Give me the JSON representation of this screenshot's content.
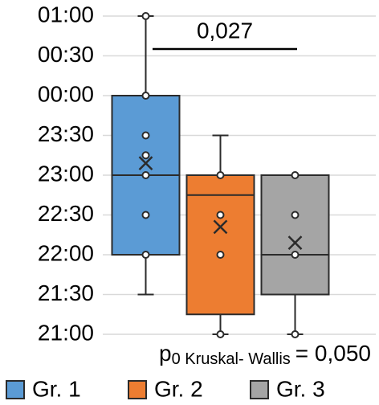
{
  "chart_data": {
    "type": "box",
    "ylim": [
      21,
      25
    ],
    "yticks": [
      {
        "value": 21,
        "label": "21:00"
      },
      {
        "value": 21.5,
        "label": "21:30"
      },
      {
        "value": 22,
        "label": "22:00"
      },
      {
        "value": 22.5,
        "label": "22:30"
      },
      {
        "value": 23,
        "label": "23:00"
      },
      {
        "value": 23.5,
        "label": "23:30"
      },
      {
        "value": 24,
        "label": "00:00"
      },
      {
        "value": 24.5,
        "label": "00:30"
      },
      {
        "value": 25,
        "label": "01:00"
      }
    ],
    "grid": true,
    "legend": "bottom",
    "significance": "0,027",
    "test_note": {
      "symbol": "p",
      "subscript": "0 Kruskal- Wallis",
      "text": "= 0,050"
    },
    "series": [
      {
        "name": "Gr. 1",
        "color": "#5b9bd5",
        "whisker_low": 21.5,
        "q1": 22,
        "median": 23,
        "q3": 24,
        "whisker_high": 25,
        "mean": 23.15,
        "points": [
          25,
          24,
          23.5,
          23.25,
          23,
          22.5,
          22
        ]
      },
      {
        "name": "Gr. 2",
        "color": "#ed7d31",
        "whisker_low": 21,
        "q1": 21.25,
        "median": 22.75,
        "q3": 23,
        "whisker_high": 23.5,
        "mean": 22.35,
        "points": [
          23,
          22.5,
          22,
          21
        ]
      },
      {
        "name": "Gr. 3",
        "color": "#a5a5a5",
        "whisker_low": 21,
        "q1": 21.5,
        "median": 22,
        "q3": 23,
        "whisker_high": 23,
        "mean": 22.15,
        "points": [
          23,
          22.5,
          22,
          21
        ]
      }
    ]
  }
}
